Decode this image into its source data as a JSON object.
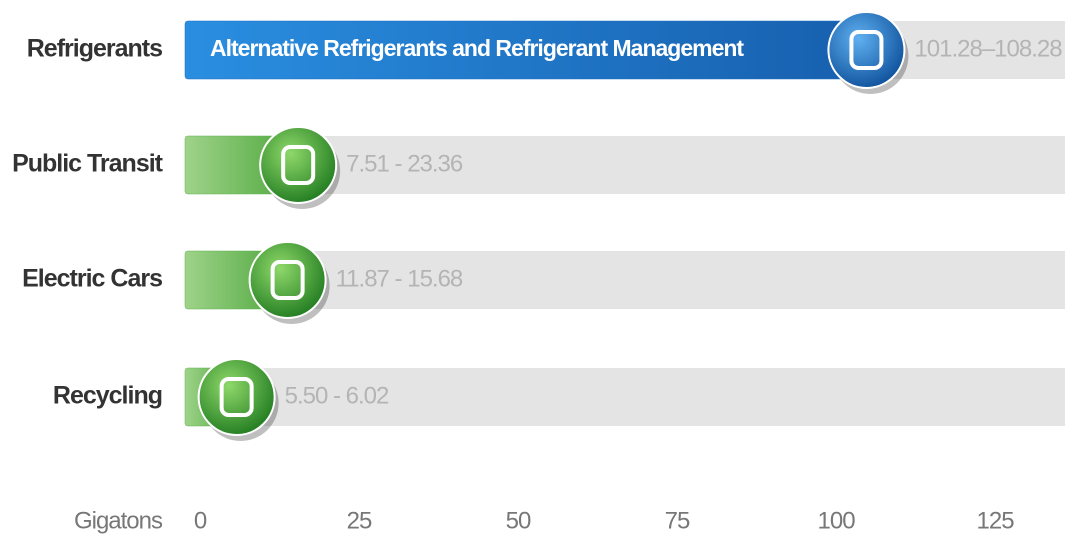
{
  "chart_data": {
    "type": "range_bar",
    "categories": [
      "Refrigerants",
      "Public Transit",
      "Electric Cars",
      "Recycling"
    ],
    "low": [
      101.28,
      7.51,
      11.87,
      5.5
    ],
    "high": [
      108.28,
      23.36,
      15.68,
      6.02
    ],
    "range_labels": [
      "101.28–108.28",
      "7.51 - 23.36",
      "11.87 - 15.68",
      "5.50 - 6.02"
    ],
    "details": [
      "Alternative Refrigerants and Refrigerant Management",
      null,
      null,
      null
    ],
    "colors": [
      "#1e6fc2",
      "#5fb44d",
      "#5fb44d",
      "#5fb44d"
    ],
    "xlabel": "Gigatons",
    "xlim": [
      0,
      136
    ],
    "xticks": [
      0,
      25,
      50,
      75,
      100,
      125
    ]
  }
}
